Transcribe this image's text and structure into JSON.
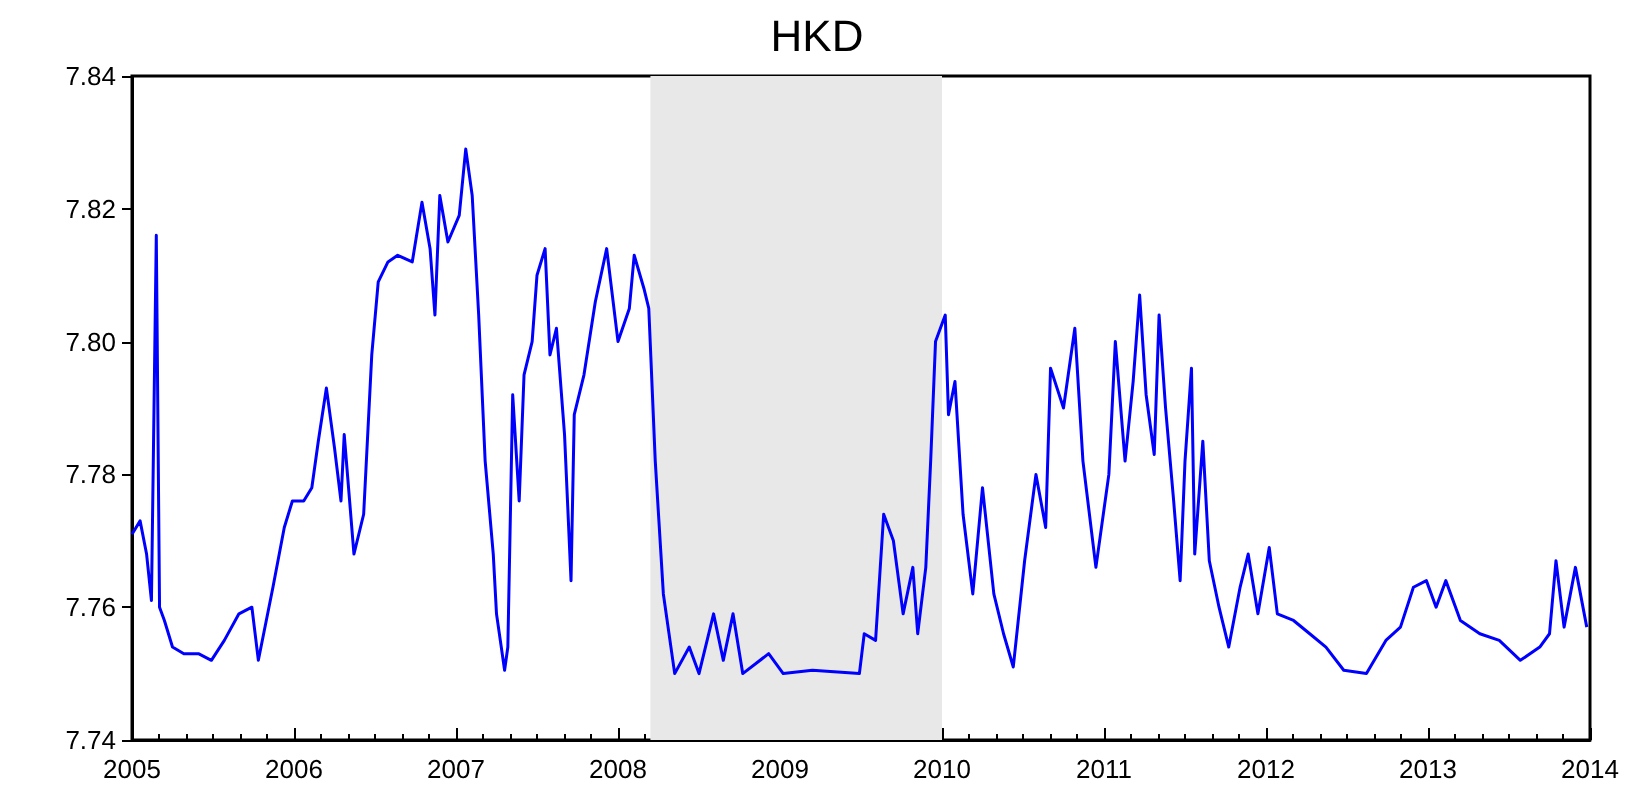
{
  "chart_data": {
    "type": "line",
    "title": "HKD",
    "x": [
      2005,
      2005.05,
      2005.09,
      2005.12,
      2005.15,
      2005.17,
      2005.2,
      2005.25,
      2005.32,
      2005.41,
      2005.49,
      2005.57,
      2005.66,
      2005.74,
      2005.78,
      2005.87,
      2005.94,
      2005.99,
      2006.06,
      2006.11,
      2006.15,
      2006.2,
      2006.25,
      2006.29,
      2006.31,
      2006.37,
      2006.43,
      2006.48,
      2006.52,
      2006.58,
      2006.64,
      2006.73,
      2006.79,
      2006.84,
      2006.87,
      2006.9,
      2006.95,
      2007.02,
      2007.06,
      2007.1,
      2007.14,
      2007.18,
      2007.23,
      2007.25,
      2007.3,
      2007.32,
      2007.35,
      2007.39,
      2007.42,
      2007.47,
      2007.5,
      2007.55,
      2007.58,
      2007.62,
      2007.67,
      2007.71,
      2007.73,
      2007.79,
      2007.86,
      2007.93,
      2008,
      2008.07,
      2008.1,
      2008.16,
      2008.19,
      2008.23,
      2008.28,
      2008.35,
      2008.44,
      2008.5,
      2008.59,
      2008.65,
      2008.71,
      2008.77,
      2008.93,
      2009.02,
      2009.2,
      2009.49,
      2009.52,
      2009.59,
      2009.64,
      2009.7,
      2009.76,
      2009.82,
      2009.85,
      2009.9,
      2009.93,
      2009.96,
      2010.02,
      2010.04,
      2010.08,
      2010.13,
      2010.19,
      2010.25,
      2010.32,
      2010.38,
      2010.44,
      2010.51,
      2010.58,
      2010.64,
      2010.67,
      2010.75,
      2010.82,
      2010.87,
      2010.95,
      2011.03,
      2011.07,
      2011.13,
      2011.18,
      2011.22,
      2011.26,
      2011.31,
      2011.34,
      2011.38,
      2011.43,
      2011.47,
      2011.5,
      2011.54,
      2011.56,
      2011.61,
      2011.65,
      2011.71,
      2011.77,
      2011.84,
      2011.89,
      2011.95,
      2012.02,
      2012.07,
      2012.17,
      2012.27,
      2012.37,
      2012.48,
      2012.62,
      2012.74,
      2012.83,
      2012.91,
      2012.99,
      2013.05,
      2013.11,
      2013.2,
      2013.32,
      2013.44,
      2013.57,
      2013.69,
      2013.75,
      2013.79,
      2013.84,
      2013.91,
      2013.98
    ],
    "series": [
      {
        "color": "#0000ff",
        "values": [
          7.771,
          7.773,
          7.768,
          7.761,
          7.816,
          7.76,
          7.758,
          7.754,
          7.753,
          7.753,
          7.752,
          7.755,
          7.759,
          7.76,
          7.752,
          7.763,
          7.772,
          7.776,
          7.776,
          7.778,
          7.785,
          7.793,
          7.784,
          7.776,
          7.786,
          7.768,
          7.774,
          7.798,
          7.809,
          7.812,
          7.813,
          7.812,
          7.821,
          7.814,
          7.804,
          7.822,
          7.815,
          7.819,
          7.829,
          7.822,
          7.804,
          7.782,
          7.768,
          7.759,
          7.7505,
          7.754,
          7.792,
          7.776,
          7.795,
          7.8,
          7.81,
          7.814,
          7.798,
          7.802,
          7.786,
          7.764,
          7.789,
          7.795,
          7.806,
          7.814,
          7.8,
          7.805,
          7.813,
          7.808,
          7.805,
          7.782,
          7.762,
          7.75,
          7.754,
          7.75,
          7.759,
          7.752,
          7.759,
          7.75,
          7.753,
          7.75,
          7.7505,
          7.75,
          7.756,
          7.755,
          7.774,
          7.77,
          7.759,
          7.766,
          7.756,
          7.766,
          7.782,
          7.8,
          7.804,
          7.789,
          7.794,
          7.774,
          7.762,
          7.778,
          7.762,
          7.756,
          7.751,
          7.767,
          7.78,
          7.772,
          7.796,
          7.79,
          7.802,
          7.782,
          7.766,
          7.78,
          7.8,
          7.782,
          7.794,
          7.807,
          7.792,
          7.783,
          7.804,
          7.79,
          7.776,
          7.764,
          7.782,
          7.796,
          7.768,
          7.785,
          7.767,
          7.76,
          7.754,
          7.763,
          7.768,
          7.759,
          7.769,
          7.759,
          7.758,
          7.756,
          7.754,
          7.7505,
          7.75,
          7.755,
          7.757,
          7.763,
          7.764,
          7.76,
          7.764,
          7.758,
          7.756,
          7.755,
          7.752,
          7.754,
          7.756,
          7.767,
          7.757,
          7.766,
          7.757
        ]
      }
    ],
    "xlim": [
      2005,
      2014
    ],
    "xticks": [
      2005,
      2006,
      2007,
      2008,
      2009,
      2010,
      2011,
      2012,
      2013,
      2014
    ],
    "ylim": [
      7.74,
      7.84
    ],
    "yticks": [
      {
        "value": 7.74,
        "label": "7.74"
      },
      {
        "value": 7.76,
        "label": "7.76"
      },
      {
        "value": 7.78,
        "label": "7.78"
      },
      {
        "value": 7.8,
        "label": "7.80"
      },
      {
        "value": 7.82,
        "label": "7.82"
      },
      {
        "value": 7.84,
        "label": "7.84"
      }
    ],
    "bands": [
      {
        "axis": "x",
        "from": 2008.2,
        "to": 2010.0,
        "color": "#e8e8e8"
      }
    ],
    "marker": "none",
    "line_style": "solid"
  }
}
